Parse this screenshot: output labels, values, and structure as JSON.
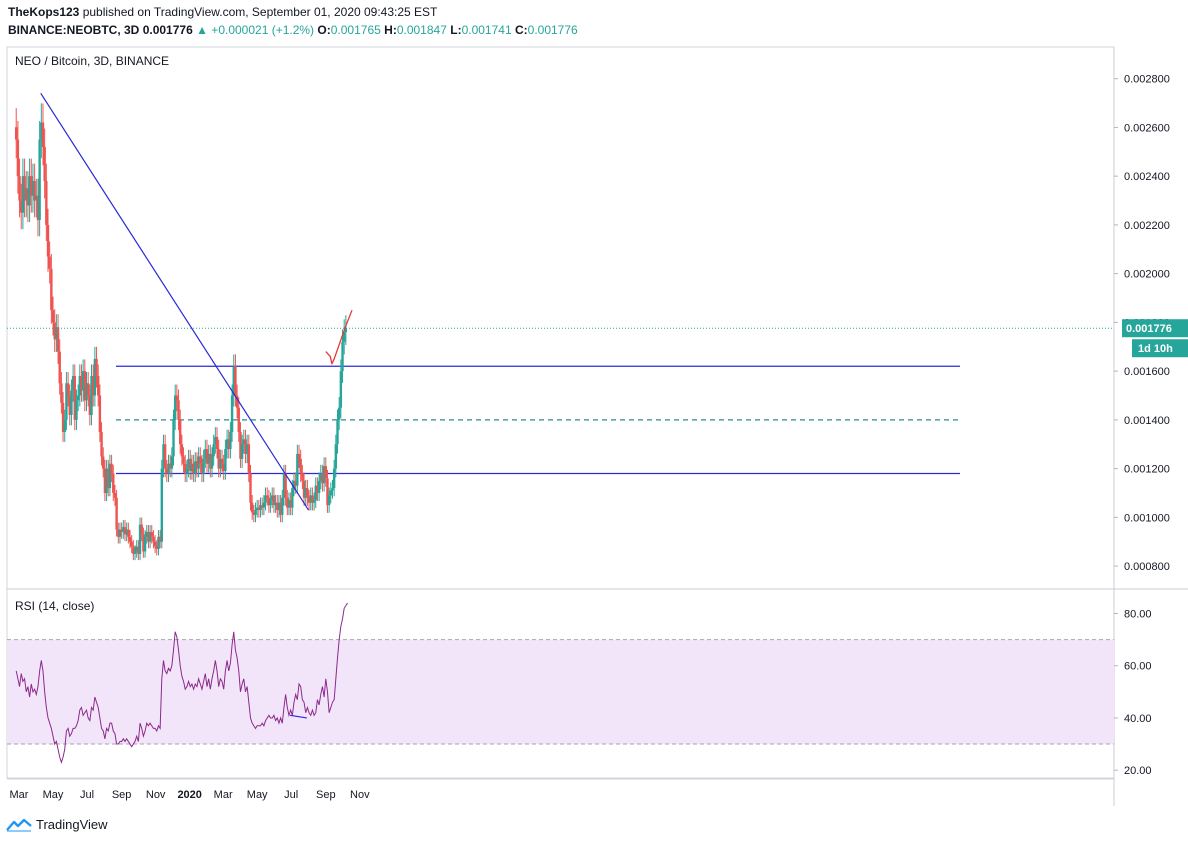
{
  "header": {
    "publisher": "TheKops123",
    "published_text": "published on TradingView.com, September 01, 2020 09:43:25 EST",
    "symbol": "BINANCE:NEOBTC, 3D",
    "last": "0.001776",
    "change": "▲ +0.000021 (+1.2%)",
    "o_label": "O:",
    "o_val": "0.001765",
    "h_label": "H:",
    "h_val": "0.001847",
    "l_label": "L:",
    "l_val": "0.001741",
    "c_label": "C:",
    "c_val": "0.001776"
  },
  "footer": {
    "brand": "TradingView"
  },
  "colors": {
    "up": "#26a69a",
    "down": "#ef5350",
    "line": "#2929d9",
    "rsi": "#8b2a8b",
    "band": "#f3e5f9",
    "arrow": "#e53935"
  },
  "chart_data": [
    {
      "type": "candlestick",
      "title": "NEO / Bitcoin, 3D, BINANCE",
      "ylim": [
        0.00071,
        0.00293
      ],
      "y_ticks": [
        "0.002800",
        "0.002600",
        "0.002400",
        "0.002200",
        "0.002000",
        "0.001800",
        "0.001600",
        "0.001400",
        "0.001200",
        "0.001000",
        "0.000800"
      ],
      "x_ticks": [
        {
          "label": "Mar",
          "date": "2019-03-01"
        },
        {
          "label": "May",
          "date": "2019-05-01"
        },
        {
          "label": "Jul",
          "date": "2019-07-01"
        },
        {
          "label": "Sep",
          "date": "2019-09-01"
        },
        {
          "label": "Nov",
          "date": "2019-11-01"
        },
        {
          "label": "2020",
          "date": "2020-01-01"
        },
        {
          "label": "Mar",
          "date": "2020-03-01"
        },
        {
          "label": "May",
          "date": "2020-05-01"
        },
        {
          "label": "Jul",
          "date": "2020-07-01"
        },
        {
          "label": "Sep",
          "date": "2020-09-01"
        },
        {
          "label": "Nov",
          "date": "2020-11-01"
        }
      ],
      "start_date": "2019-02-24",
      "interval_days": 3,
      "closes": [
        0.00255,
        0.0024,
        0.0023,
        0.00225,
        0.0024,
        0.0023,
        0.00235,
        0.00228,
        0.0024,
        0.00232,
        0.00238,
        0.0023,
        0.00232,
        0.00222,
        0.00255,
        0.00262,
        0.00252,
        0.00238,
        0.0022,
        0.00207,
        0.00202,
        0.00185,
        0.0018,
        0.00173,
        0.00178,
        0.00168,
        0.00155,
        0.00147,
        0.00135,
        0.0014,
        0.00155,
        0.0015,
        0.00142,
        0.00152,
        0.00158,
        0.0014,
        0.00148,
        0.0015,
        0.00158,
        0.00152,
        0.0016,
        0.00148,
        0.00155,
        0.0015,
        0.00142,
        0.00158,
        0.0015,
        0.00165,
        0.00158,
        0.0015,
        0.00135,
        0.00125,
        0.0012,
        0.0011,
        0.0012,
        0.00112,
        0.00122,
        0.00118,
        0.0011,
        0.00108,
        0.00095,
        0.00092,
        0.00095,
        0.00094,
        0.00096,
        0.00093,
        0.00095,
        0.00092,
        0.0009,
        0.00088,
        0.00085,
        0.00086,
        0.00088,
        0.00085,
        0.00097,
        0.00093,
        0.00086,
        0.00092,
        0.00094,
        0.0009,
        0.00094,
        0.00092,
        0.0009,
        0.00088,
        0.00087,
        0.00092,
        0.0009,
        0.0012,
        0.0013,
        0.0012,
        0.00118,
        0.00122,
        0.0012,
        0.00125,
        0.0014,
        0.0015,
        0.00148,
        0.0014,
        0.0013,
        0.00125,
        0.00122,
        0.00118,
        0.0012,
        0.00124,
        0.00119,
        0.00122,
        0.00118,
        0.00123,
        0.0012,
        0.00125,
        0.00122,
        0.00118,
        0.00124,
        0.00128,
        0.00122,
        0.00126,
        0.0012,
        0.00125,
        0.0013,
        0.00133,
        0.00128,
        0.0012,
        0.00124,
        0.00122,
        0.00119,
        0.00128,
        0.00132,
        0.00128,
        0.00135,
        0.0015,
        0.00162,
        0.0015,
        0.00145,
        0.00135,
        0.00124,
        0.0013,
        0.00132,
        0.00126,
        0.0013,
        0.00118,
        0.00106,
        0.00102,
        0.00101,
        0.00103,
        0.00104,
        0.00103,
        0.00105,
        0.00104,
        0.00106,
        0.00109,
        0.00108,
        0.00105,
        0.00107,
        0.00109,
        0.00105,
        0.00106,
        0.00103,
        0.00106,
        0.00101,
        0.00108,
        0.00118,
        0.00108,
        0.00104,
        0.00107,
        0.00104,
        0.00112,
        0.00115,
        0.00113,
        0.00126,
        0.00124,
        0.00118,
        0.00115,
        0.00108,
        0.00112,
        0.00108,
        0.00106,
        0.00109,
        0.00106,
        0.00107,
        0.00113,
        0.0011,
        0.00115,
        0.00118,
        0.00114,
        0.00121,
        0.00116,
        0.00105,
        0.00109,
        0.00111,
        0.00112,
        0.0012,
        0.0013,
        0.0014,
        0.00145,
        0.0016,
        0.00172,
        0.00176,
        0.001776
      ],
      "horizontal_lines": [
        {
          "price": 0.00162,
          "style": "solid"
        },
        {
          "price": 0.0014,
          "style": "dashed"
        },
        {
          "price": 0.00118,
          "style": "solid"
        }
      ],
      "trendline": {
        "from": {
          "date": "2019-04-09",
          "price": 0.00274
        },
        "to": {
          "date": "2020-08-01",
          "price": 0.00103
        }
      },
      "current_price_label": "0.001776",
      "countdown_label": "1d 10h",
      "projection": [
        {
          "date": "2020-09-01",
          "price": 0.00168
        },
        {
          "date": "2020-09-09",
          "price": 0.00166
        },
        {
          "date": "2020-09-12",
          "price": 0.00163
        },
        {
          "date": "2020-09-16",
          "price": 0.00165
        },
        {
          "date": "2020-10-06",
          "price": 0.00178
        },
        {
          "date": "2020-10-18",
          "price": 0.00185
        }
      ]
    },
    {
      "type": "line",
      "title": "RSI (14, close)",
      "ylim": [
        17,
        89
      ],
      "y_ticks": [
        "80.00",
        "60.00",
        "40.00",
        "20.00"
      ],
      "band": [
        30,
        70
      ],
      "values": [
        58,
        55,
        52,
        57,
        54,
        55,
        50,
        52,
        48,
        53,
        50,
        51,
        49,
        52,
        58,
        62,
        58,
        50,
        44,
        40,
        38,
        36,
        33,
        30,
        31,
        28,
        25,
        23,
        25,
        28,
        35,
        36,
        33,
        34,
        36,
        36,
        37,
        39,
        43,
        44,
        41,
        42,
        43,
        40,
        39,
        44,
        43,
        48,
        46,
        44,
        40,
        36,
        35,
        32,
        36,
        35,
        38,
        38,
        35,
        34,
        30,
        30,
        31,
        31,
        32,
        31,
        32,
        31,
        30,
        29,
        30,
        31,
        33,
        31,
        38,
        36,
        33,
        35,
        38,
        37,
        38,
        37,
        36,
        36,
        35,
        37,
        36,
        55,
        62,
        58,
        57,
        59,
        58,
        60,
        66,
        73,
        71,
        66,
        60,
        56,
        54,
        51,
        52,
        54,
        52,
        53,
        51,
        53,
        52,
        55,
        53,
        51,
        54,
        57,
        52,
        55,
        51,
        55,
        58,
        62,
        58,
        52,
        55,
        54,
        51,
        58,
        62,
        58,
        61,
        68,
        73,
        66,
        63,
        58,
        50,
        53,
        55,
        50,
        52,
        46,
        40,
        38,
        37,
        36,
        37,
        37,
        37,
        38,
        37,
        39,
        40,
        41,
        40,
        40,
        41,
        39,
        40,
        38,
        40,
        38,
        44,
        49,
        44,
        41,
        43,
        41,
        46,
        49,
        47,
        53,
        52,
        47,
        46,
        42,
        44,
        42,
        41,
        43,
        41,
        42,
        47,
        45,
        49,
        52,
        48,
        55,
        50,
        42,
        44,
        46,
        47,
        55,
        63,
        70,
        75,
        78,
        82,
        83,
        84
      ],
      "divergence_line": {
        "from": {
          "date": "2020-06-29",
          "value": 41
        },
        "to": {
          "date": "2020-07-29",
          "value": 40
        }
      },
      "x_ticks": [
        "Mar",
        "May",
        "Jul",
        "Sep",
        "Nov",
        "2020",
        "Mar",
        "May",
        "Jul",
        "Sep",
        "Nov"
      ]
    }
  ]
}
